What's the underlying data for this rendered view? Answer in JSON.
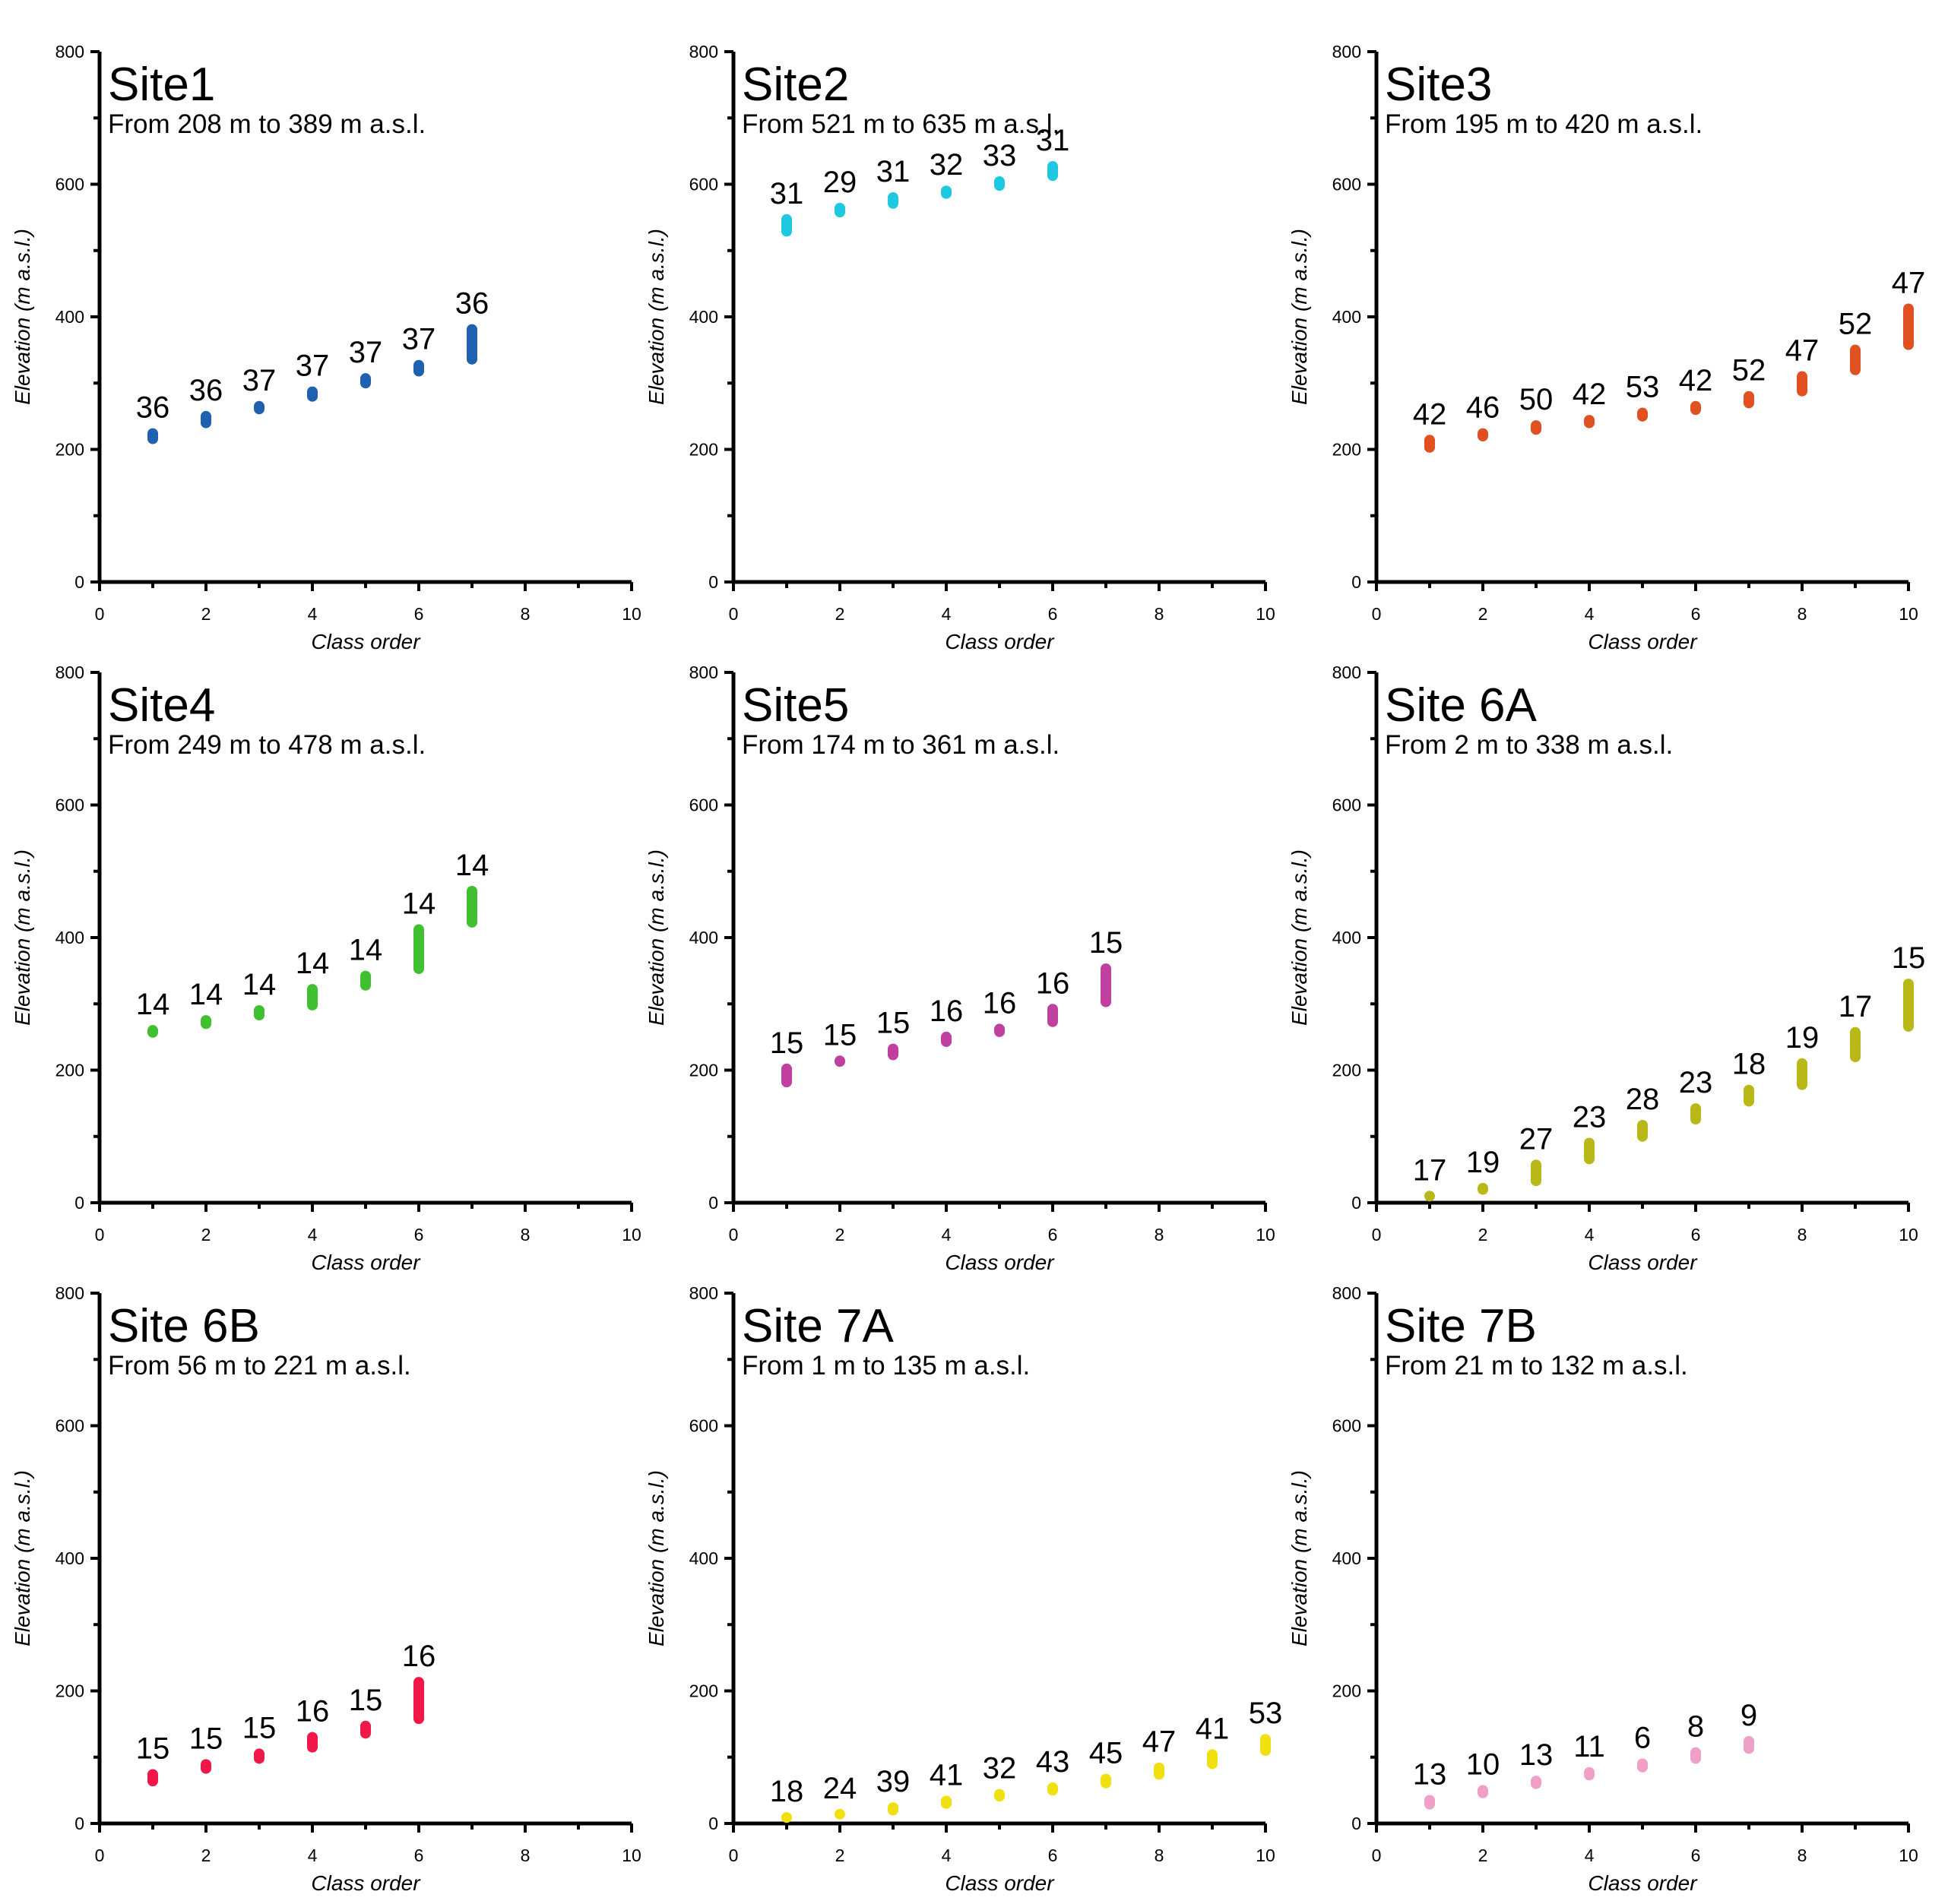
{
  "figure": {
    "description_free": true
  },
  "chart_data": [
    {
      "type": "range-bar",
      "title": "Site1",
      "subtitle": "From 208 m to 389 m a.s.l.",
      "xlabel": "Class order",
      "ylabel": "Elevation (m a.s.l.)",
      "xlim": [
        0,
        10
      ],
      "ylim": [
        0,
        800
      ],
      "xticks": [
        0,
        2,
        4,
        6,
        8,
        10
      ],
      "yticks": [
        0,
        200,
        400,
        600,
        800
      ],
      "color": "#2060b0",
      "bars": [
        {
          "x": 1,
          "low": 208,
          "high": 232,
          "label": "36"
        },
        {
          "x": 2,
          "low": 232,
          "high": 258,
          "label": "36"
        },
        {
          "x": 3,
          "low": 253,
          "high": 273,
          "label": "37"
        },
        {
          "x": 4,
          "low": 272,
          "high": 295,
          "label": "37"
        },
        {
          "x": 5,
          "low": 292,
          "high": 315,
          "label": "37"
        },
        {
          "x": 6,
          "low": 310,
          "high": 335,
          "label": "37"
        },
        {
          "x": 7,
          "low": 328,
          "high": 389,
          "label": "36"
        }
      ]
    },
    {
      "type": "range-bar",
      "title": "Site2",
      "subtitle": "From 521 m to 635 m a.s.l.",
      "xlabel": "Class order",
      "ylabel": "Elevation (m a.s.l.)",
      "xlim": [
        0,
        10
      ],
      "ylim": [
        0,
        800
      ],
      "xticks": [
        0,
        2,
        4,
        6,
        8,
        10
      ],
      "yticks": [
        0,
        200,
        400,
        600,
        800
      ],
      "color": "#1ec8e0",
      "bars": [
        {
          "x": 1,
          "low": 521,
          "high": 555,
          "label": "31"
        },
        {
          "x": 2,
          "low": 550,
          "high": 572,
          "label": "29"
        },
        {
          "x": 3,
          "low": 563,
          "high": 588,
          "label": "31"
        },
        {
          "x": 4,
          "low": 578,
          "high": 598,
          "label": "32"
        },
        {
          "x": 5,
          "low": 590,
          "high": 612,
          "label": "33"
        },
        {
          "x": 6,
          "low": 605,
          "high": 635,
          "label": "31"
        }
      ]
    },
    {
      "type": "range-bar",
      "title": "Site3",
      "subtitle": "From 195 m to 420 m a.s.l.",
      "xlabel": "Class order",
      "ylabel": "Elevation (m a.s.l.)",
      "xlim": [
        0,
        10
      ],
      "ylim": [
        0,
        800
      ],
      "xticks": [
        0,
        2,
        4,
        6,
        8,
        10
      ],
      "yticks": [
        0,
        200,
        400,
        600,
        800
      ],
      "color": "#e05020",
      "bars": [
        {
          "x": 1,
          "low": 195,
          "high": 222,
          "label": "42"
        },
        {
          "x": 2,
          "low": 212,
          "high": 232,
          "label": "46"
        },
        {
          "x": 3,
          "low": 222,
          "high": 244,
          "label": "50"
        },
        {
          "x": 4,
          "low": 232,
          "high": 252,
          "label": "42"
        },
        {
          "x": 5,
          "low": 242,
          "high": 263,
          "label": "53"
        },
        {
          "x": 6,
          "low": 252,
          "high": 273,
          "label": "42"
        },
        {
          "x": 7,
          "low": 262,
          "high": 288,
          "label": "52"
        },
        {
          "x": 8,
          "low": 280,
          "high": 318,
          "label": "47"
        },
        {
          "x": 9,
          "low": 312,
          "high": 358,
          "label": "52"
        },
        {
          "x": 10,
          "low": 350,
          "high": 420,
          "label": "47"
        }
      ]
    },
    {
      "type": "range-bar",
      "title": "Site4",
      "subtitle": "From 249 m to 478 m a.s.l.",
      "xlabel": "Class order",
      "ylabel": "Elevation (m a.s.l.)",
      "xlim": [
        0,
        10
      ],
      "ylim": [
        0,
        800
      ],
      "xticks": [
        0,
        2,
        4,
        6,
        8,
        10
      ],
      "yticks": [
        0,
        200,
        400,
        600,
        800
      ],
      "color": "#40c030",
      "bars": [
        {
          "x": 1,
          "low": 249,
          "high": 268,
          "label": "14"
        },
        {
          "x": 2,
          "low": 262,
          "high": 283,
          "label": "14"
        },
        {
          "x": 3,
          "low": 275,
          "high": 298,
          "label": "14"
        },
        {
          "x": 4,
          "low": 290,
          "high": 330,
          "label": "14"
        },
        {
          "x": 5,
          "low": 320,
          "high": 350,
          "label": "14"
        },
        {
          "x": 6,
          "low": 345,
          "high": 420,
          "label": "14"
        },
        {
          "x": 7,
          "low": 415,
          "high": 478,
          "label": "14"
        }
      ]
    },
    {
      "type": "range-bar",
      "title": "Site5",
      "subtitle": "From 174 m to 361 m a.s.l.",
      "xlabel": "Class order",
      "ylabel": "Elevation (m a.s.l.)",
      "xlim": [
        0,
        10
      ],
      "ylim": [
        0,
        800
      ],
      "xticks": [
        0,
        2,
        4,
        6,
        8,
        10
      ],
      "yticks": [
        0,
        200,
        400,
        600,
        800
      ],
      "color": "#c040a0",
      "bars": [
        {
          "x": 1,
          "low": 174,
          "high": 210,
          "label": "15"
        },
        {
          "x": 2,
          "low": 205,
          "high": 222,
          "label": "15"
        },
        {
          "x": 3,
          "low": 215,
          "high": 240,
          "label": "15"
        },
        {
          "x": 4,
          "low": 235,
          "high": 258,
          "label": "16"
        },
        {
          "x": 5,
          "low": 250,
          "high": 270,
          "label": "16"
        },
        {
          "x": 6,
          "low": 265,
          "high": 300,
          "label": "16"
        },
        {
          "x": 7,
          "low": 295,
          "high": 361,
          "label": "15"
        }
      ]
    },
    {
      "type": "range-bar",
      "title": "Site 6A",
      "subtitle": "From 2 m to 338 m a.s.l.",
      "xlabel": "Class order",
      "ylabel": "Elevation (m a.s.l.)",
      "xlim": [
        0,
        10
      ],
      "ylim": [
        0,
        800
      ],
      "xticks": [
        0,
        2,
        4,
        6,
        8,
        10
      ],
      "yticks": [
        0,
        200,
        400,
        600,
        800
      ],
      "color": "#b8b818",
      "bars": [
        {
          "x": 1,
          "low": 2,
          "high": 18,
          "label": "17"
        },
        {
          "x": 2,
          "low": 12,
          "high": 30,
          "label": "19"
        },
        {
          "x": 3,
          "low": 25,
          "high": 65,
          "label": "27"
        },
        {
          "x": 4,
          "low": 58,
          "high": 98,
          "label": "23"
        },
        {
          "x": 5,
          "low": 92,
          "high": 125,
          "label": "28"
        },
        {
          "x": 6,
          "low": 118,
          "high": 150,
          "label": "23"
        },
        {
          "x": 7,
          "low": 145,
          "high": 178,
          "label": "18"
        },
        {
          "x": 8,
          "low": 170,
          "high": 218,
          "label": "19"
        },
        {
          "x": 9,
          "low": 212,
          "high": 265,
          "label": "17"
        },
        {
          "x": 10,
          "low": 258,
          "high": 338,
          "label": "15"
        }
      ]
    },
    {
      "type": "range-bar",
      "title": "Site 6B",
      "subtitle": "From 56 m to 221 m a.s.l.",
      "xlabel": "Class order",
      "ylabel": "Elevation (m a.s.l.)",
      "xlim": [
        0,
        10
      ],
      "ylim": [
        0,
        800
      ],
      "xticks": [
        0,
        2,
        4,
        6,
        8,
        10
      ],
      "yticks": [
        0,
        200,
        400,
        600,
        800
      ],
      "color": "#f01848",
      "bars": [
        {
          "x": 1,
          "low": 56,
          "high": 82,
          "label": "15"
        },
        {
          "x": 2,
          "low": 75,
          "high": 97,
          "label": "15"
        },
        {
          "x": 3,
          "low": 90,
          "high": 113,
          "label": "15"
        },
        {
          "x": 4,
          "low": 107,
          "high": 138,
          "label": "16"
        },
        {
          "x": 5,
          "low": 128,
          "high": 155,
          "label": "15"
        },
        {
          "x": 6,
          "low": 150,
          "high": 221,
          "label": "16"
        }
      ]
    },
    {
      "type": "range-bar",
      "title": "Site 7A",
      "subtitle": "From 1 m to 135 m a.s.l.",
      "xlabel": "Class order",
      "ylabel": "Elevation (m a.s.l.)",
      "xlim": [
        0,
        10
      ],
      "ylim": [
        0,
        800
      ],
      "xticks": [
        0,
        2,
        4,
        6,
        8,
        10
      ],
      "yticks": [
        0,
        200,
        400,
        600,
        800
      ],
      "color": "#f0e010",
      "bars": [
        {
          "x": 1,
          "low": 1,
          "high": 10,
          "label": "18"
        },
        {
          "x": 2,
          "low": 6,
          "high": 18,
          "label": "24"
        },
        {
          "x": 3,
          "low": 12,
          "high": 32,
          "label": "39"
        },
        {
          "x": 4,
          "low": 22,
          "high": 42,
          "label": "41"
        },
        {
          "x": 5,
          "low": 33,
          "high": 52,
          "label": "32"
        },
        {
          "x": 6,
          "low": 42,
          "high": 62,
          "label": "43"
        },
        {
          "x": 7,
          "low": 53,
          "high": 75,
          "label": "45"
        },
        {
          "x": 8,
          "low": 66,
          "high": 92,
          "label": "47"
        },
        {
          "x": 9,
          "low": 82,
          "high": 112,
          "label": "41"
        },
        {
          "x": 10,
          "low": 102,
          "high": 135,
          "label": "53"
        }
      ]
    },
    {
      "type": "range-bar",
      "title": "Site 7B",
      "subtitle": "From 21 m to 132 m a.s.l.",
      "xlabel": "Class order",
      "ylabel": "Elevation (m a.s.l.)",
      "xlim": [
        0,
        10
      ],
      "ylim": [
        0,
        800
      ],
      "xticks": [
        0,
        2,
        4,
        6,
        8,
        10
      ],
      "yticks": [
        0,
        200,
        400,
        600,
        800
      ],
      "color": "#f0a0c8",
      "bars": [
        {
          "x": 1,
          "low": 21,
          "high": 43,
          "label": "13"
        },
        {
          "x": 2,
          "low": 38,
          "high": 58,
          "label": "10"
        },
        {
          "x": 3,
          "low": 52,
          "high": 72,
          "label": "13"
        },
        {
          "x": 4,
          "low": 65,
          "high": 85,
          "label": "11"
        },
        {
          "x": 5,
          "low": 77,
          "high": 98,
          "label": "6"
        },
        {
          "x": 6,
          "low": 90,
          "high": 115,
          "label": "8"
        },
        {
          "x": 7,
          "low": 105,
          "high": 132,
          "label": "9"
        }
      ]
    }
  ]
}
